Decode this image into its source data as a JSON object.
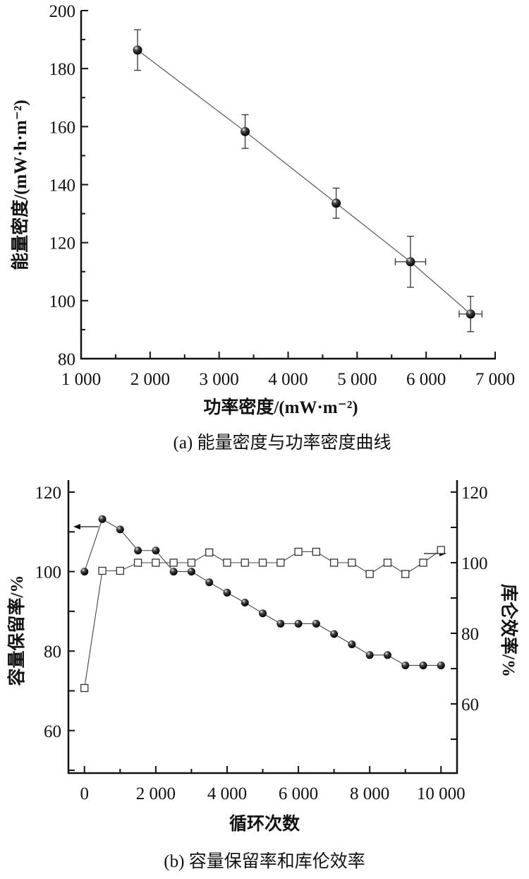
{
  "chart_data": [
    {
      "type": "scatter",
      "title": "",
      "caption": "(a) 能量密度与功率密度曲线",
      "xlabel": "功率密度/(mW·m⁻²)",
      "ylabel": "能量密度/(mW·h·m⁻²)",
      "xlim": [
        1000,
        7000
      ],
      "ylim": [
        80,
        200
      ],
      "xticks": [
        1000,
        2000,
        3000,
        4000,
        5000,
        6000,
        7000
      ],
      "xtick_labels": [
        "1 000",
        "2 000",
        "3 000",
        "4 000",
        "5 000",
        "6 000",
        "7 000"
      ],
      "yticks": [
        80,
        100,
        120,
        140,
        160,
        180,
        200
      ],
      "ytick_labels": [
        "80",
        "100",
        "120",
        "140",
        "160",
        "180",
        "200"
      ],
      "series": [
        {
          "name": "energy-vs-power",
          "marker": "filled-circle",
          "line": true,
          "x": [
            1818,
            3377,
            4696,
            5773,
            6644
          ],
          "y": [
            186.4,
            158.3,
            133.6,
            113.4,
            95.4
          ],
          "y_err": [
            7.0,
            5.8,
            5.2,
            8.8,
            6.1
          ],
          "x_err": [
            0,
            0,
            0,
            220,
            165
          ]
        }
      ],
      "grid": false
    },
    {
      "type": "line",
      "title": "",
      "caption": "(b) 容量保留率和库伦效率",
      "xlabel": "循环次数",
      "ylabel": "容量保留率/%",
      "ylabel_right": "库仑效率/%",
      "xlim": [
        -450,
        10450
      ],
      "ylim": [
        49.3,
        120
      ],
      "ylim_right": [
        40.4,
        120
      ],
      "xticks": [
        0,
        2000,
        4000,
        6000,
        8000,
        10000
      ],
      "xtick_labels": [
        "0",
        "2 000",
        "4 000",
        "6 000",
        "8 000",
        "10 000"
      ],
      "yticks": [
        60,
        80,
        100,
        120
      ],
      "ytick_labels": [
        "60",
        "80",
        "100",
        "120"
      ],
      "yticks_right": [
        60,
        80,
        100,
        120
      ],
      "ytick_labels_right": [
        "60",
        "80",
        "100",
        "120"
      ],
      "x": [
        0,
        500,
        1000,
        1500,
        2000,
        2500,
        3000,
        3500,
        4000,
        4500,
        5000,
        5500,
        6000,
        6500,
        7000,
        7500,
        8000,
        8500,
        9000,
        9500,
        10000
      ],
      "series": [
        {
          "name": "容量保留率",
          "axis": "left",
          "marker": "filled-circle",
          "values": [
            100,
            113.2,
            110.6,
            105.3,
            105.3,
            100,
            100,
            97.3,
            94.7,
            92.2,
            89.5,
            86.9,
            86.9,
            86.9,
            84.3,
            81.7,
            79.0,
            79.0,
            76.4,
            76.4,
            76.4
          ]
        },
        {
          "name": "库仑效率",
          "axis": "right",
          "marker": "open-square",
          "values": [
            64.5,
            97.7,
            97.7,
            100,
            100,
            100,
            100,
            102.9,
            100,
            100,
            100,
            100,
            103.1,
            103.1,
            100,
            100,
            96.8,
            100,
            96.8,
            100,
            103.6
          ]
        }
      ],
      "grid": false
    }
  ]
}
